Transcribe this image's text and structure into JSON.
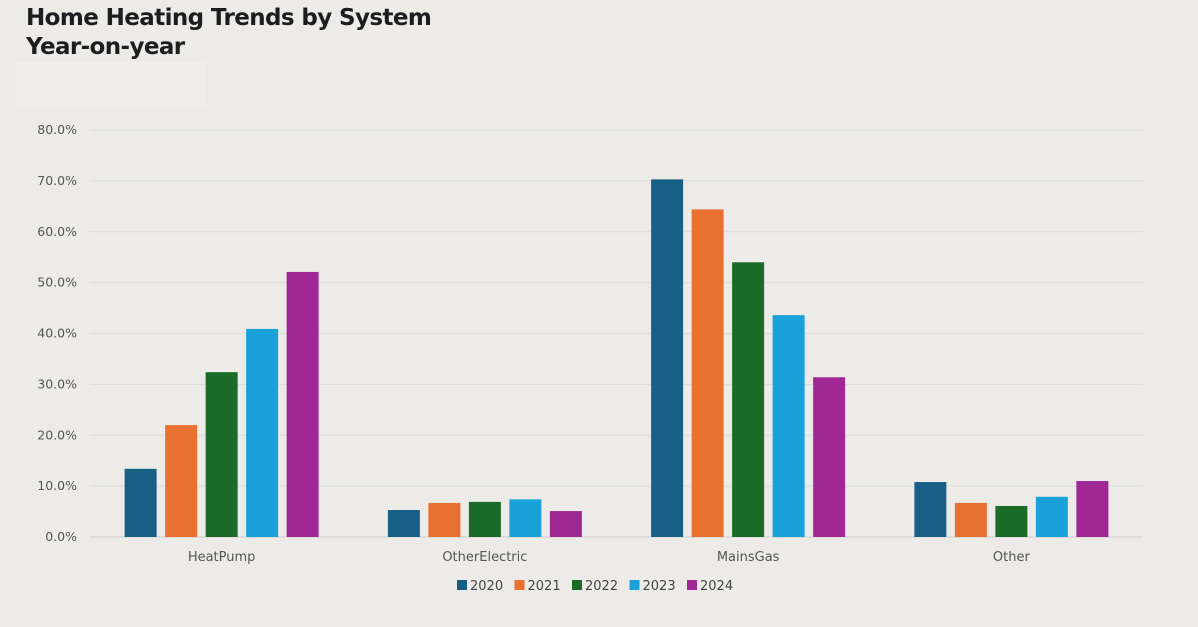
{
  "chart_data": {
    "type": "bar",
    "title": "Home Heating Trends by System",
    "subtitle": "Year-on-year",
    "xlabel": "",
    "ylabel": "",
    "ylim": [
      0,
      80
    ],
    "yticks": [
      "0.0%",
      "10.0%",
      "20.0%",
      "30.0%",
      "40.0%",
      "50.0%",
      "60.0%",
      "70.0%",
      "80.0%"
    ],
    "grid": true,
    "legend_position": "bottom",
    "categories": [
      "HeatPump",
      "OtherElectric",
      "MainsGas",
      "Other"
    ],
    "series": [
      {
        "name": "2020",
        "color": "#175f84",
        "values": [
          13.4,
          5.3,
          70.3,
          10.8
        ]
      },
      {
        "name": "2021",
        "color": "#e87132",
        "values": [
          22.0,
          6.7,
          64.4,
          6.7
        ]
      },
      {
        "name": "2022",
        "color": "#1a6b27",
        "values": [
          32.4,
          6.9,
          54.0,
          6.1
        ]
      },
      {
        "name": "2023",
        "color": "#1aa1d9",
        "values": [
          40.9,
          7.4,
          43.6,
          7.9
        ]
      },
      {
        "name": "2024",
        "color": "#a02895",
        "values": [
          52.1,
          5.1,
          31.4,
          11.0
        ]
      }
    ]
  }
}
